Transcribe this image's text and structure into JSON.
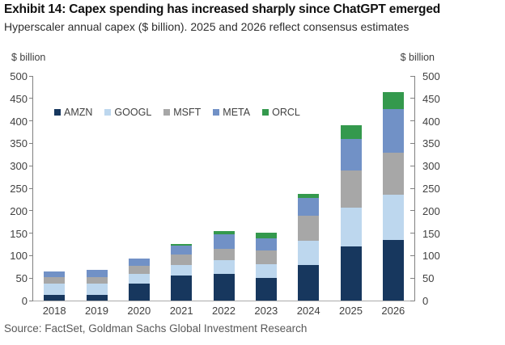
{
  "header": {
    "title": "Exhibit 14: Capex spending has increased sharply since ChatGPT emerged",
    "subtitle": "Hyperscaler annual capex ($ billion). 2025 and 2026 reflect consensus estimates"
  },
  "source": "Source: FactSet, Goldman Sachs Global Investment Research",
  "chart_data": {
    "type": "bar",
    "stacked": true,
    "title": "Exhibit 14: Capex spending has increased sharply since ChatGPT emerged",
    "subtitle": "Hyperscaler annual capex ($ billion). 2025 and 2026 reflect consensus estimates",
    "ylabel_left": "$ billion",
    "ylabel_right": "$ billion",
    "categories": [
      "2018",
      "2019",
      "2020",
      "2021",
      "2022",
      "2023",
      "2024",
      "2025",
      "2026"
    ],
    "series": [
      {
        "name": "AMZN",
        "color": "#17375e",
        "values": [
          12,
          13,
          38,
          56,
          59,
          50,
          79,
          120,
          135
        ]
      },
      {
        "name": "GOOGL",
        "color": "#bdd7ee",
        "values": [
          26,
          25,
          22,
          24,
          31,
          31,
          54,
          86,
          100
        ]
      },
      {
        "name": "MSFT",
        "color": "#a7a7a7",
        "values": [
          14,
          15,
          18,
          23,
          26,
          30,
          55,
          84,
          95
        ]
      },
      {
        "name": "META",
        "color": "#7191c6",
        "values": [
          13,
          16,
          15,
          20,
          31,
          28,
          40,
          69,
          96
        ]
      },
      {
        "name": "ORCL",
        "color": "#34994d",
        "values": [
          0,
          0,
          0,
          3,
          7,
          12,
          10,
          32,
          39
        ]
      }
    ],
    "totals": [
      65,
      69,
      93,
      126,
      154,
      151,
      238,
      391,
      465
    ],
    "ylim": [
      0,
      500
    ],
    "ytick_step": 50,
    "grid": false,
    "legend_position": "top-left-inside",
    "axis_color": "#808080",
    "text_color": "#404040"
  }
}
